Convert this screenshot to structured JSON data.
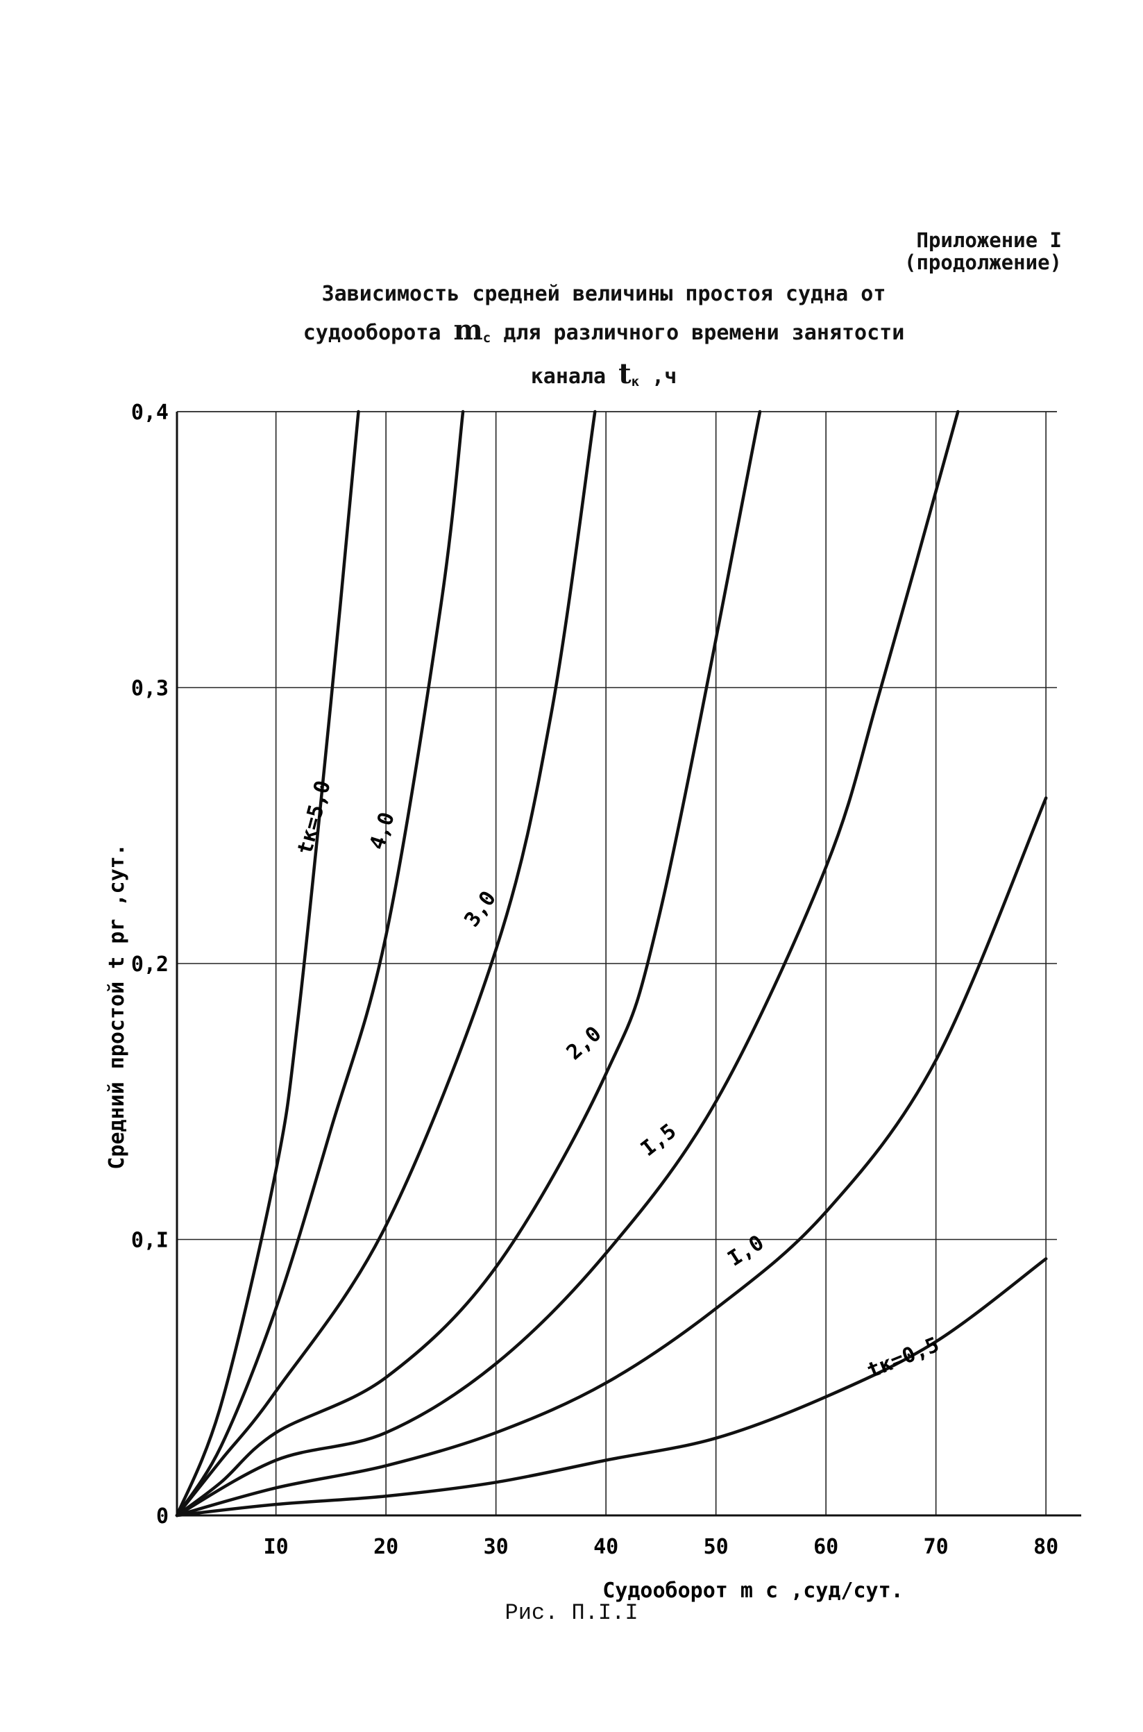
{
  "header": {
    "appendix_line1": "Приложение I",
    "appendix_line2": "(продолжение)"
  },
  "title": {
    "line1": "Зависимость средней величины простоя судна от",
    "line2_pre": "судооборота",
    "line2_sym": "m",
    "line2_sub": "c",
    "line2_post": "для различного времени занятости",
    "line3_pre": "канала",
    "line3_sym": "t",
    "line3_sub": "к",
    "line3_post": ",ч"
  },
  "caption": "Рис. П.I.I",
  "chart_data": {
    "type": "line",
    "title": "",
    "xlabel": "Судооборот m c ,суд/сут.",
    "ylabel": "Средний простой t pr ,сут.",
    "xlim": [
      1,
      81
    ],
    "ylim": [
      0,
      0.4
    ],
    "x_ticks": [
      10,
      20,
      30,
      40,
      50,
      60,
      70,
      80
    ],
    "x_tick_labels": [
      "I0",
      "20",
      "30",
      "40",
      "50",
      "60",
      "70",
      "80"
    ],
    "y_ticks": [
      0,
      0.1,
      0.2,
      0.3,
      0.4
    ],
    "y_tick_labels": [
      "0",
      "0,I",
      "0,2",
      "0,3",
      "0,4"
    ],
    "grid": true,
    "series": [
      {
        "name": "tк=5,0",
        "x": [
          1,
          5,
          10,
          12,
          15,
          17.5
        ],
        "y": [
          0,
          0.04,
          0.125,
          0.18,
          0.295,
          0.4
        ]
      },
      {
        "name": "4,0",
        "x": [
          1,
          5,
          10,
          15,
          20,
          25,
          27
        ],
        "y": [
          0,
          0.025,
          0.075,
          0.14,
          0.21,
          0.33,
          0.4
        ]
      },
      {
        "name": "3,0",
        "x": [
          1,
          5,
          10,
          20,
          30,
          35,
          39
        ],
        "y": [
          0,
          0.02,
          0.045,
          0.105,
          0.205,
          0.29,
          0.4
        ]
      },
      {
        "name": "2,0",
        "x": [
          1,
          5,
          10,
          20,
          30,
          40,
          45,
          54
        ],
        "y": [
          0,
          0.012,
          0.03,
          0.05,
          0.09,
          0.16,
          0.22,
          0.4
        ]
      },
      {
        "name": "I,5",
        "x": [
          1,
          10,
          20,
          30,
          40,
          50,
          60,
          65,
          72
        ],
        "y": [
          0,
          0.02,
          0.03,
          0.055,
          0.095,
          0.15,
          0.235,
          0.3,
          0.4
        ]
      },
      {
        "name": "I,0",
        "x": [
          1,
          10,
          20,
          30,
          40,
          50,
          60,
          70,
          80
        ],
        "y": [
          0,
          0.01,
          0.018,
          0.03,
          0.048,
          0.075,
          0.11,
          0.165,
          0.26
        ]
      },
      {
        "name": "tк=0,5",
        "x": [
          1,
          10,
          20,
          30,
          40,
          50,
          60,
          70,
          80
        ],
        "y": [
          0,
          0.004,
          0.007,
          0.012,
          0.02,
          0.028,
          0.043,
          0.063,
          0.093
        ]
      }
    ]
  }
}
